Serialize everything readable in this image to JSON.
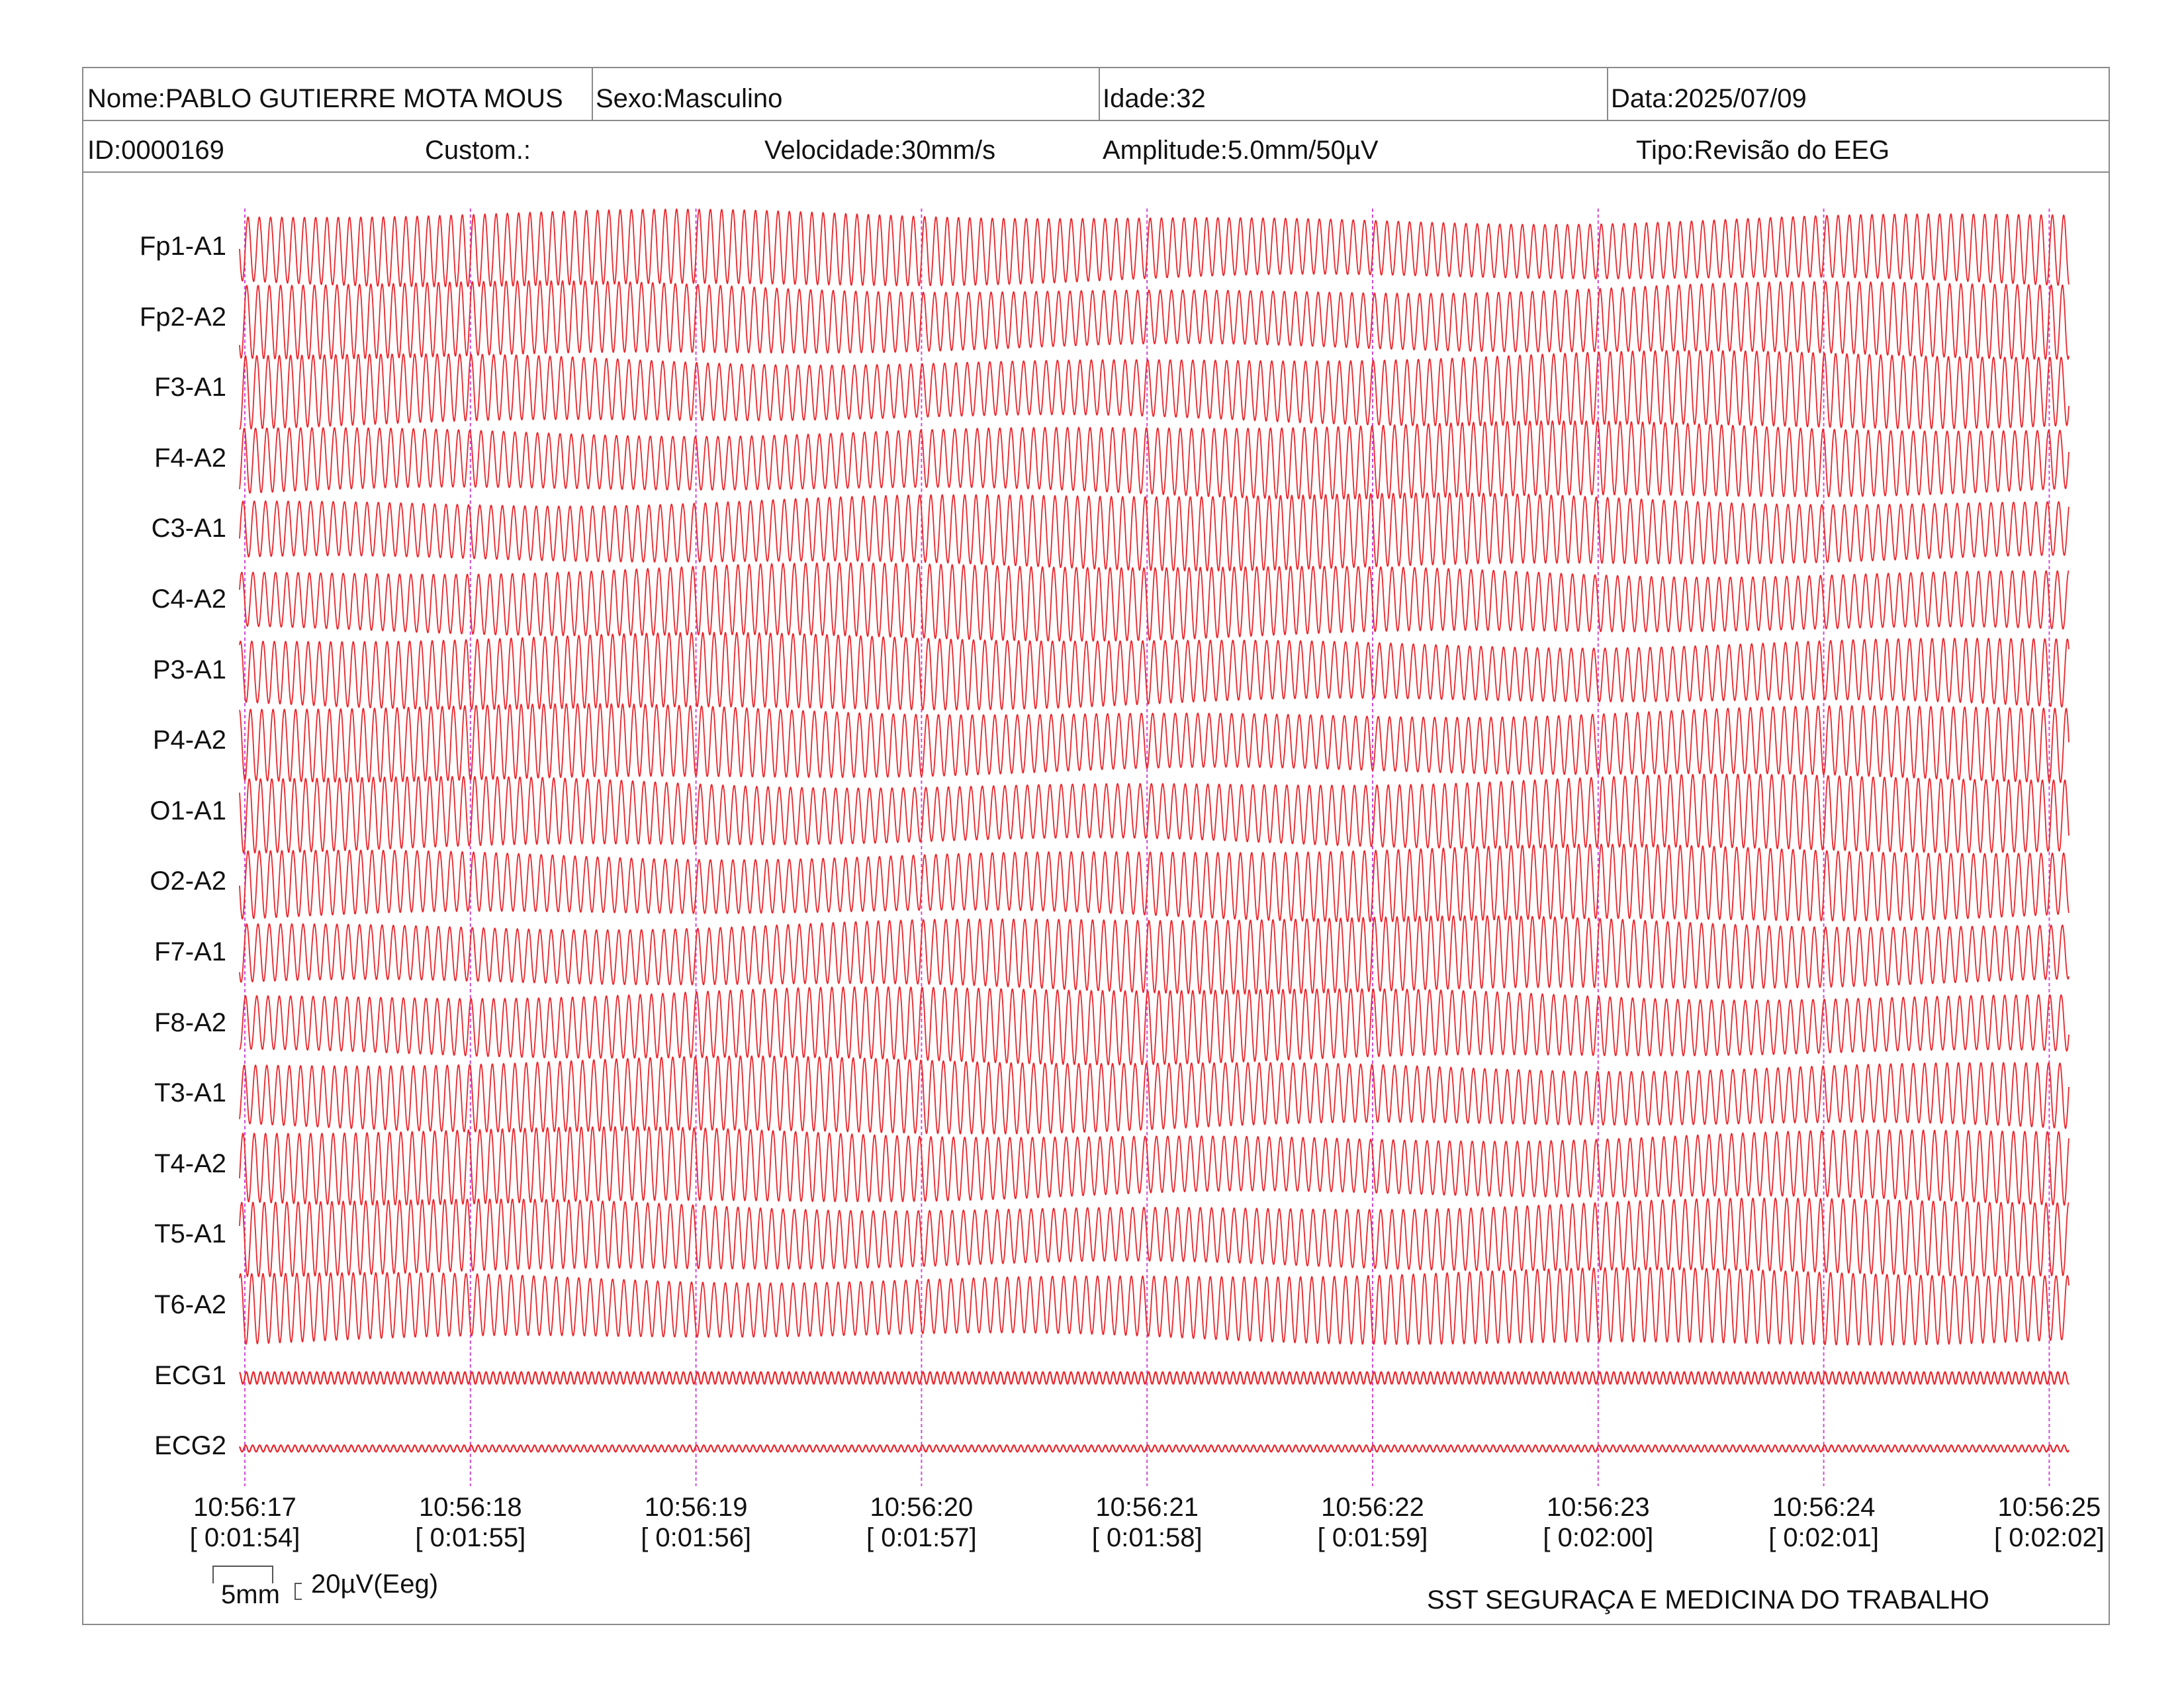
{
  "header": {
    "name": "Nome:PABLO GUTIERRE MOTA MOUS",
    "sex": "Sexo:Masculino",
    "age": "Idade:32",
    "date": "Data:2025/07/09",
    "id": "ID:0000169",
    "custom": "Custom.:",
    "speed": "Velocidade:30mm/s",
    "amplitude": "Amplitude:5.0mm/50µV",
    "type": "Tipo:Revisão do EEG"
  },
  "channels": [
    "Fp1-A1",
    "Fp2-A2",
    "F3-A1",
    "F4-A2",
    "C3-A1",
    "C4-A2",
    "P3-A1",
    "P4-A2",
    "O1-A1",
    "O2-A2",
    "F7-A1",
    "F8-A2",
    "T3-A1",
    "T4-A2",
    "T5-A1",
    "T6-A2",
    "ECG1",
    "ECG2"
  ],
  "time_marks": [
    {
      "clock": "10:56:17",
      "elapsed": "[ 0:01:54]"
    },
    {
      "clock": "10:56:18",
      "elapsed": "[ 0:01:55]"
    },
    {
      "clock": "10:56:19",
      "elapsed": "[ 0:01:56]"
    },
    {
      "clock": "10:56:20",
      "elapsed": "[ 0:01:57]"
    },
    {
      "clock": "10:56:21",
      "elapsed": "[ 0:01:58]"
    },
    {
      "clock": "10:56:22",
      "elapsed": "[ 0:01:59]"
    },
    {
      "clock": "10:56:23",
      "elapsed": "[ 0:02:00]"
    },
    {
      "clock": "10:56:24",
      "elapsed": "[ 0:02:01]"
    },
    {
      "clock": "10:56:25",
      "elapsed": "[ 0:02:02]"
    }
  ],
  "scale": {
    "time": "5mm",
    "amplitude": "20µV(Eeg)"
  },
  "footer": "SST SEGURAÇA E MEDICINA DO TRABALHO",
  "colors": {
    "trace": "#e8262b",
    "time_marker": "#d04bd8",
    "border": "#8a8a8a"
  },
  "signal": {
    "eeg_cycles_per_second": 20
  }
}
